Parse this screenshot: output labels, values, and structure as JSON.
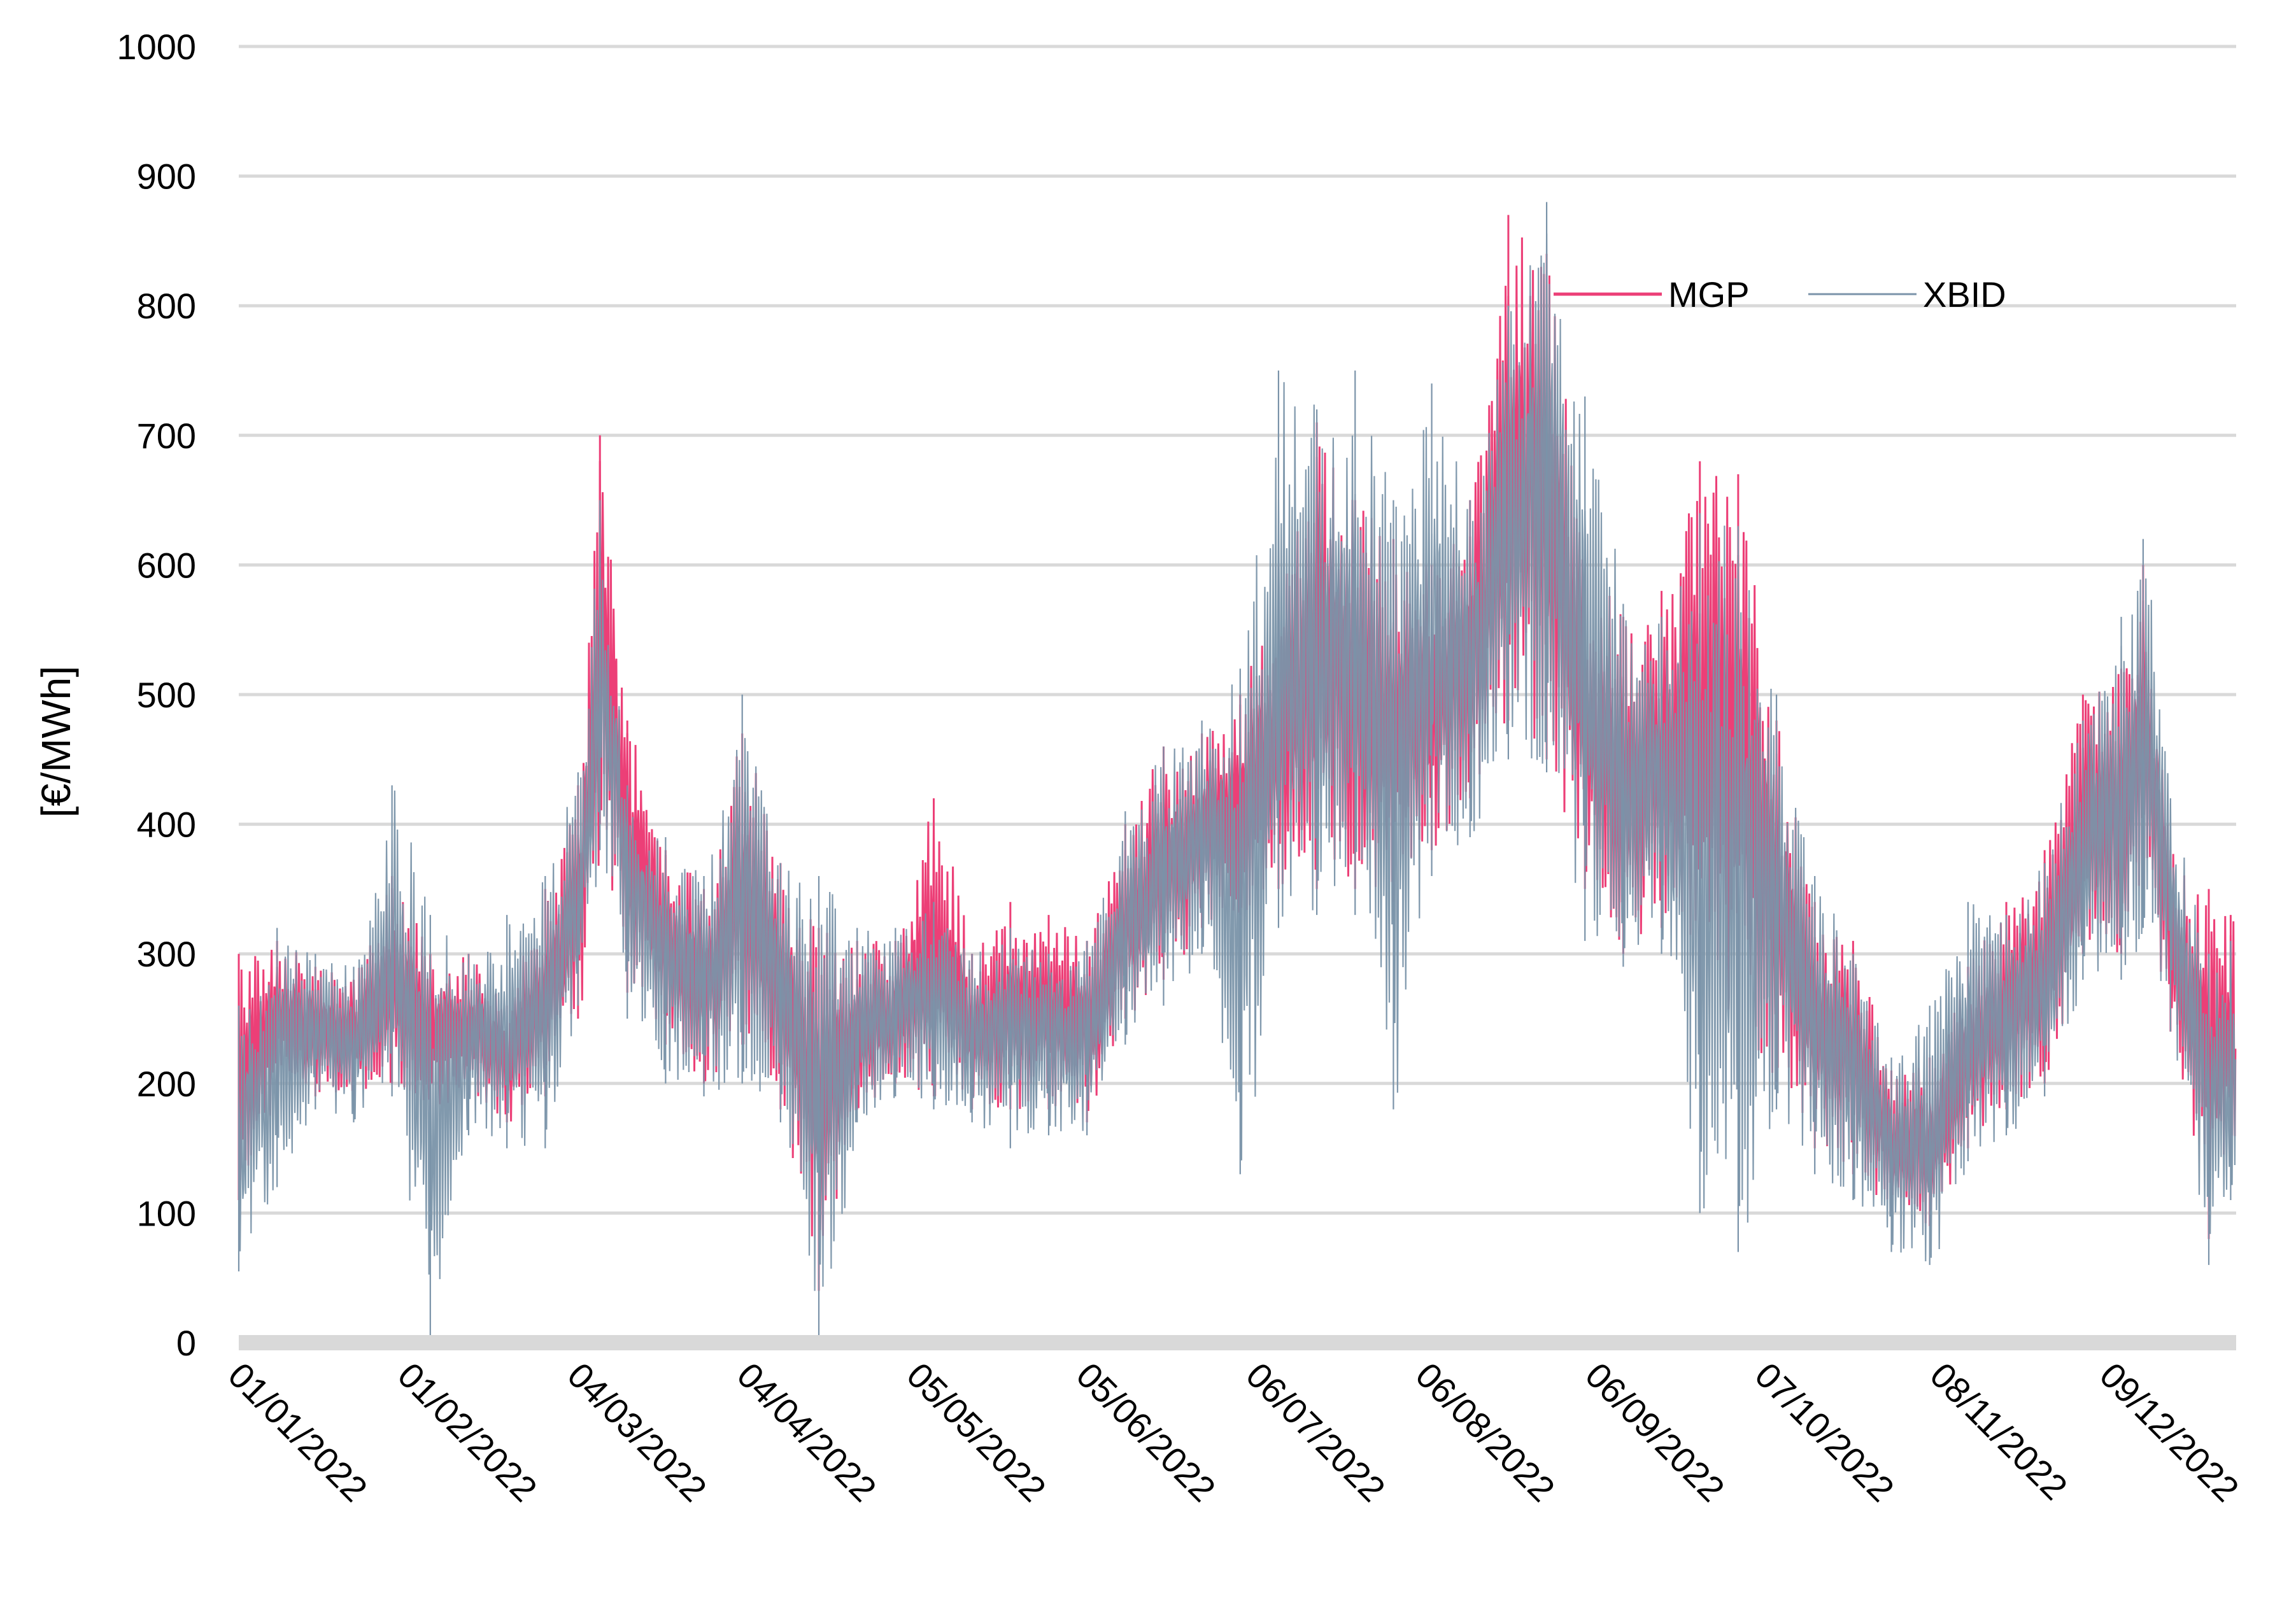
{
  "chart_data": {
    "type": "line",
    "title": "",
    "xlabel": "",
    "ylabel": "[€/MWh]",
    "ylim": [
      0,
      1000
    ],
    "yticks": [
      0,
      100,
      200,
      300,
      400,
      500,
      600,
      700,
      800,
      900,
      1000
    ],
    "x_range": [
      "2022-01-01",
      "2022-12-31"
    ],
    "x_tick_labels": [
      "01/01/2022",
      "01/02/2022",
      "04/03/2022",
      "04/04/2022",
      "05/05/2022",
      "05/06/2022",
      "06/07/2022",
      "06/08/2022",
      "06/09/2022",
      "07/10/2022",
      "08/11/2022",
      "09/12/2022"
    ],
    "x_tick_dates": [
      "2022-01-01",
      "2022-02-01",
      "2022-03-04",
      "2022-04-04",
      "2022-05-05",
      "2022-06-05",
      "2022-07-06",
      "2022-08-06",
      "2022-09-06",
      "2022-10-07",
      "2022-11-08",
      "2022-12-09"
    ],
    "grid": true,
    "legend": "top-right",
    "series_note": "hourly prices, highly volatile; values below are approximate daily envelope (low, high)",
    "series": [
      {
        "name": "MGP",
        "color": "#ec3f77",
        "points": [
          [
            "2022-01-01",
            110,
            300
          ],
          [
            "2022-01-08",
            200,
            310
          ],
          [
            "2022-01-15",
            190,
            290
          ],
          [
            "2022-01-22",
            190,
            280
          ],
          [
            "2022-01-29",
            200,
            360
          ],
          [
            "2022-02-05",
            180,
            300
          ],
          [
            "2022-02-12",
            190,
            300
          ],
          [
            "2022-02-19",
            170,
            260
          ],
          [
            "2022-02-26",
            190,
            350
          ],
          [
            "2022-03-04",
            250,
            430
          ],
          [
            "2022-03-08",
            400,
            700
          ],
          [
            "2022-03-13",
            270,
            480
          ],
          [
            "2022-03-20",
            230,
            380
          ],
          [
            "2022-03-27",
            200,
            350
          ],
          [
            "2022-04-03",
            230,
            470
          ],
          [
            "2022-04-10",
            180,
            370
          ],
          [
            "2022-04-17",
            40,
            320
          ],
          [
            "2022-04-24",
            180,
            310
          ],
          [
            "2022-05-01",
            200,
            310
          ],
          [
            "2022-05-08",
            190,
            420
          ],
          [
            "2022-05-15",
            180,
            300
          ],
          [
            "2022-05-22",
            180,
            340
          ],
          [
            "2022-05-29",
            180,
            330
          ],
          [
            "2022-06-05",
            170,
            310
          ],
          [
            "2022-06-12",
            250,
            400
          ],
          [
            "2022-06-19",
            280,
            460
          ],
          [
            "2022-06-26",
            320,
            470
          ],
          [
            "2022-07-03",
            330,
            500
          ],
          [
            "2022-07-10",
            350,
            600
          ],
          [
            "2022-07-17",
            350,
            710
          ],
          [
            "2022-07-24",
            350,
            650
          ],
          [
            "2022-07-31",
            340,
            620
          ],
          [
            "2022-08-07",
            380,
            600
          ],
          [
            "2022-08-14",
            420,
            650
          ],
          [
            "2022-08-21",
            480,
            870
          ],
          [
            "2022-08-28",
            450,
            840
          ],
          [
            "2022-09-04",
            350,
            600
          ],
          [
            "2022-09-11",
            300,
            560
          ],
          [
            "2022-09-18",
            320,
            580
          ],
          [
            "2022-09-25",
            280,
            680
          ],
          [
            "2022-10-02",
            240,
            670
          ],
          [
            "2022-10-09",
            200,
            480
          ],
          [
            "2022-10-16",
            150,
            340
          ],
          [
            "2022-10-23",
            130,
            310
          ],
          [
            "2022-10-30",
            100,
            210
          ],
          [
            "2022-11-06",
            90,
            220
          ],
          [
            "2022-11-13",
            150,
            290
          ],
          [
            "2022-11-20",
            180,
            340
          ],
          [
            "2022-11-27",
            200,
            380
          ],
          [
            "2022-12-04",
            300,
            500
          ],
          [
            "2022-12-11",
            300,
            520
          ],
          [
            "2022-12-15",
            350,
            600
          ],
          [
            "2022-12-20",
            240,
            380
          ],
          [
            "2022-12-27",
            80,
            350
          ],
          [
            "2022-12-31",
            150,
            330
          ]
        ]
      },
      {
        "name": "XBID",
        "color": "#7a93a9",
        "points": [
          [
            "2022-01-01",
            55,
            260
          ],
          [
            "2022-01-08",
            120,
            320
          ],
          [
            "2022-01-15",
            180,
            300
          ],
          [
            "2022-01-22",
            170,
            290
          ],
          [
            "2022-01-29",
            190,
            430
          ],
          [
            "2022-02-05",
            0,
            330
          ],
          [
            "2022-02-12",
            160,
            300
          ],
          [
            "2022-02-19",
            150,
            330
          ],
          [
            "2022-02-26",
            150,
            360
          ],
          [
            "2022-03-04",
            260,
            440
          ],
          [
            "2022-03-08",
            380,
            650
          ],
          [
            "2022-03-13",
            250,
            430
          ],
          [
            "2022-03-20",
            200,
            390
          ],
          [
            "2022-03-27",
            190,
            360
          ],
          [
            "2022-04-03",
            200,
            500
          ],
          [
            "2022-04-10",
            170,
            370
          ],
          [
            "2022-04-17",
            0,
            360
          ],
          [
            "2022-04-24",
            170,
            320
          ],
          [
            "2022-05-01",
            190,
            320
          ],
          [
            "2022-05-08",
            180,
            340
          ],
          [
            "2022-05-15",
            170,
            300
          ],
          [
            "2022-05-22",
            150,
            320
          ],
          [
            "2022-05-29",
            160,
            300
          ],
          [
            "2022-06-05",
            160,
            310
          ],
          [
            "2022-06-12",
            230,
            410
          ],
          [
            "2022-06-19",
            260,
            460
          ],
          [
            "2022-06-26",
            300,
            480
          ],
          [
            "2022-07-03",
            130,
            520
          ],
          [
            "2022-07-10",
            320,
            750
          ],
          [
            "2022-07-17",
            330,
            720
          ],
          [
            "2022-07-24",
            330,
            750
          ],
          [
            "2022-07-31",
            180,
            650
          ],
          [
            "2022-08-07",
            360,
            740
          ],
          [
            "2022-08-14",
            390,
            650
          ],
          [
            "2022-08-21",
            450,
            800
          ],
          [
            "2022-08-28",
            440,
            880
          ],
          [
            "2022-09-04",
            310,
            730
          ],
          [
            "2022-09-11",
            290,
            570
          ],
          [
            "2022-09-18",
            300,
            560
          ],
          [
            "2022-09-25",
            100,
            640
          ],
          [
            "2022-10-02",
            70,
            630
          ],
          [
            "2022-10-09",
            180,
            500
          ],
          [
            "2022-10-16",
            130,
            360
          ],
          [
            "2022-10-23",
            110,
            300
          ],
          [
            "2022-10-30",
            70,
            220
          ],
          [
            "2022-11-06",
            60,
            260
          ],
          [
            "2022-11-13",
            140,
            340
          ],
          [
            "2022-11-20",
            160,
            330
          ],
          [
            "2022-11-27",
            190,
            370
          ],
          [
            "2022-12-04",
            280,
            480
          ],
          [
            "2022-12-11",
            280,
            560
          ],
          [
            "2022-12-15",
            320,
            620
          ],
          [
            "2022-12-20",
            240,
            420
          ],
          [
            "2022-12-27",
            60,
            300
          ],
          [
            "2022-12-31",
            110,
            310
          ]
        ]
      }
    ]
  }
}
